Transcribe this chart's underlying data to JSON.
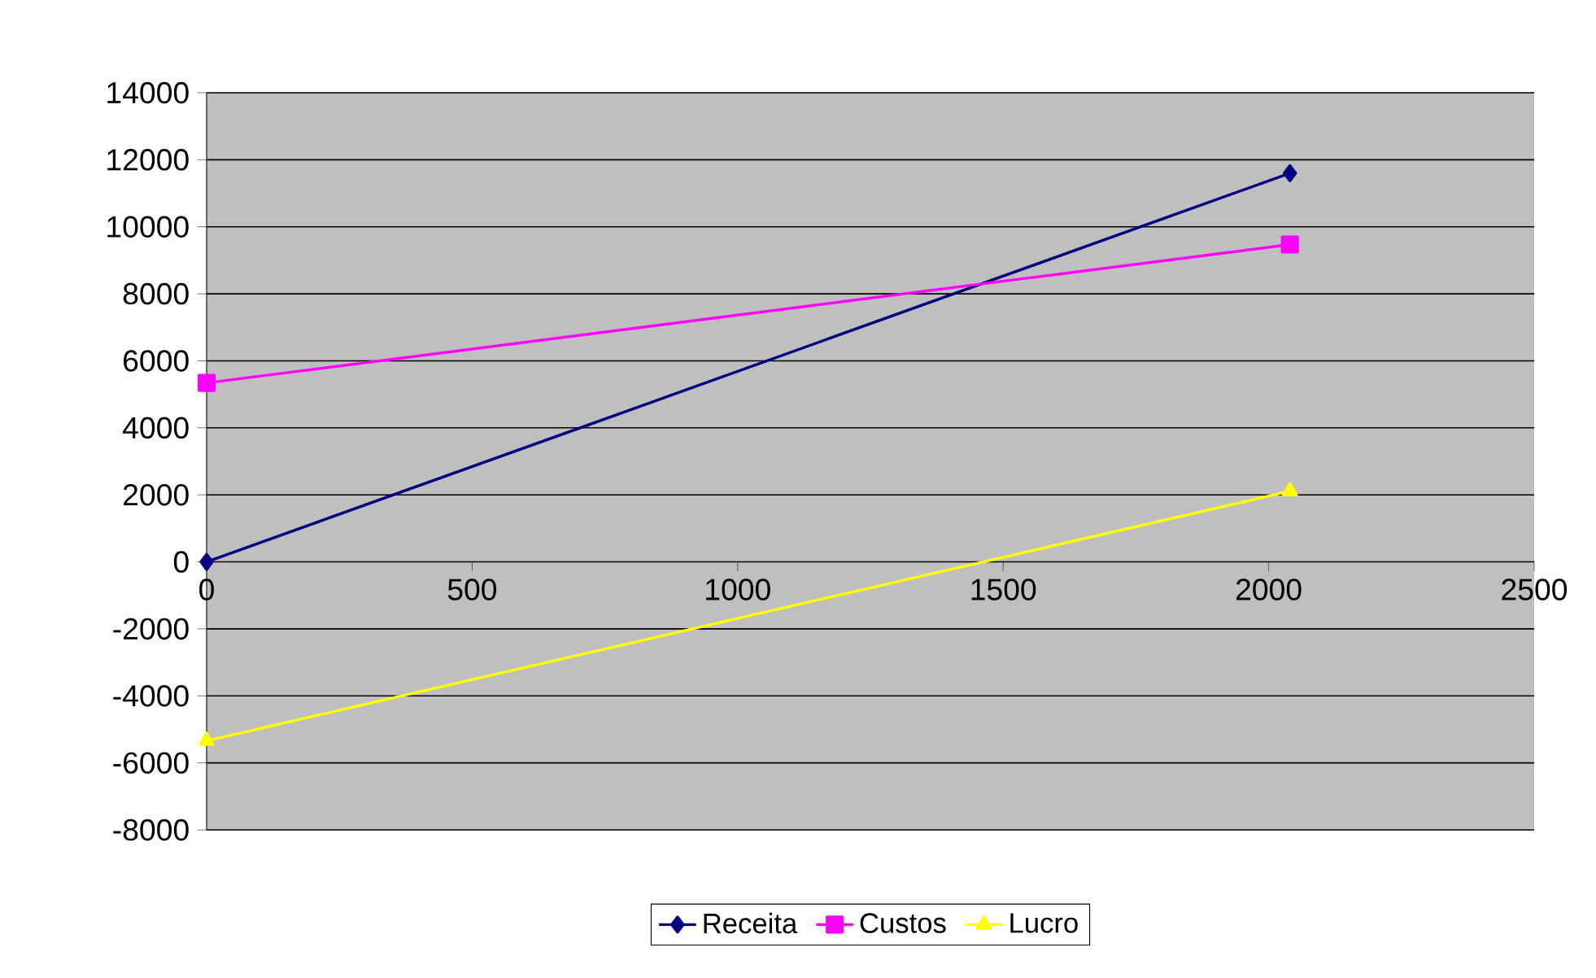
{
  "chart_data": {
    "type": "line",
    "xlim": [
      0,
      2500
    ],
    "xticks": [
      0,
      500,
      1000,
      1500,
      2000,
      2500
    ],
    "ylim": [
      -8000,
      14000
    ],
    "yticks": [
      -8000,
      -6000,
      -4000,
      -2000,
      0,
      2000,
      4000,
      6000,
      8000,
      10000,
      12000,
      14000
    ],
    "grid": "y",
    "x": [
      0,
      2040
    ],
    "legend": "bottom",
    "line_style": "solid",
    "series": [
      {
        "name": "Receita",
        "color": "#000080",
        "marker": "diamond",
        "values": [
          0,
          11600
        ]
      },
      {
        "name": "Custos",
        "color": "#ff00ff",
        "marker": "square",
        "values": [
          5340,
          9470
        ]
      },
      {
        "name": "Lucro",
        "color": "#ffff00",
        "marker": "triangle",
        "values": [
          -5340,
          2110
        ]
      }
    ]
  }
}
